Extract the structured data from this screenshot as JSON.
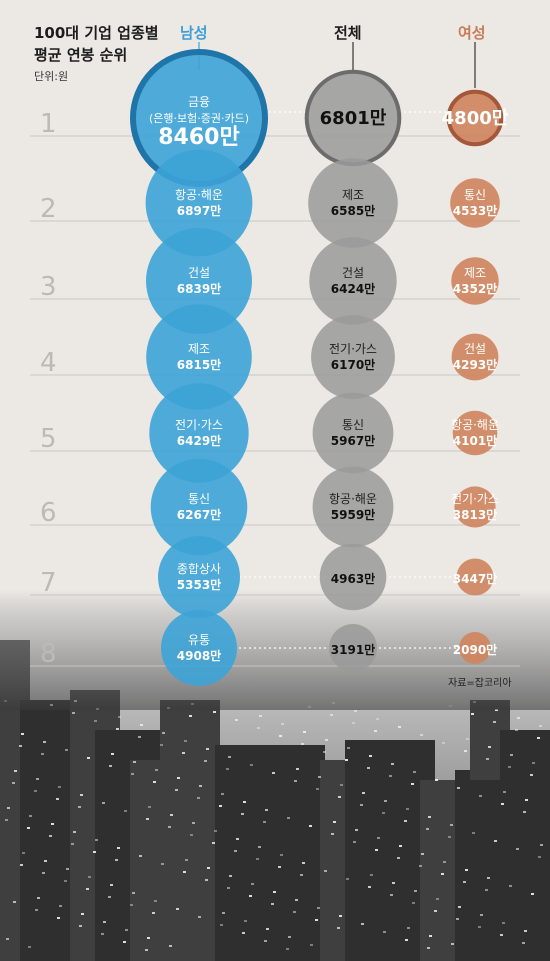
{
  "title_line1": "100대 기업 업종별",
  "title_line2": "평균 연봉 순위",
  "unit": "단위:원",
  "source": "자료=잡코리아",
  "colors": {
    "male": "#3da3d6",
    "male_ring": "#1f74a8",
    "total": "#9a9a9a",
    "female": "#cf8660",
    "female_ring": "#a5573a"
  },
  "chart_data": {
    "type": "bubble-ranking",
    "columns": [
      "남성",
      "전체",
      "여성"
    ],
    "ranks": [
      "1",
      "2",
      "3",
      "4",
      "5",
      "6",
      "7",
      "8"
    ],
    "series": [
      {
        "name": "남성",
        "items": [
          {
            "sector_line1": "금융",
            "sector_line2": "(은행·보험·증권·카드)",
            "value": "8460만"
          },
          {
            "sector_line1": "항공·해운",
            "value": "6897만"
          },
          {
            "sector_line1": "건설",
            "value": "6839만"
          },
          {
            "sector_line1": "제조",
            "value": "6815만"
          },
          {
            "sector_line1": "전기·가스",
            "value": "6429만"
          },
          {
            "sector_line1": "통신",
            "value": "6267만"
          },
          {
            "sector_line1": "종합상사",
            "value": "5353만"
          },
          {
            "sector_line1": "유통",
            "value": "4908만"
          }
        ]
      },
      {
        "name": "전체",
        "items": [
          {
            "sector_line1": "",
            "value": "6801만"
          },
          {
            "sector_line1": "제조",
            "value": "6585만"
          },
          {
            "sector_line1": "건설",
            "value": "6424만"
          },
          {
            "sector_line1": "전기·가스",
            "value": "6170만"
          },
          {
            "sector_line1": "통신",
            "value": "5967만"
          },
          {
            "sector_line1": "항공·해운",
            "value": "5959만"
          },
          {
            "sector_line1": "",
            "value": "4963만"
          },
          {
            "sector_line1": "",
            "value": "3191만"
          }
        ]
      },
      {
        "name": "여성",
        "items": [
          {
            "sector_line1": "",
            "value": "4800만"
          },
          {
            "sector_line1": "통신",
            "value": "4533만"
          },
          {
            "sector_line1": "제조",
            "value": "4352만"
          },
          {
            "sector_line1": "건설",
            "value": "4293만"
          },
          {
            "sector_line1": "항공·해운",
            "value": "4101만"
          },
          {
            "sector_line1": "전기·가스",
            "value": "3813만"
          },
          {
            "sector_line1": "",
            "value": "3447만"
          },
          {
            "sector_line1": "",
            "value": "2090만"
          }
        ]
      }
    ]
  }
}
